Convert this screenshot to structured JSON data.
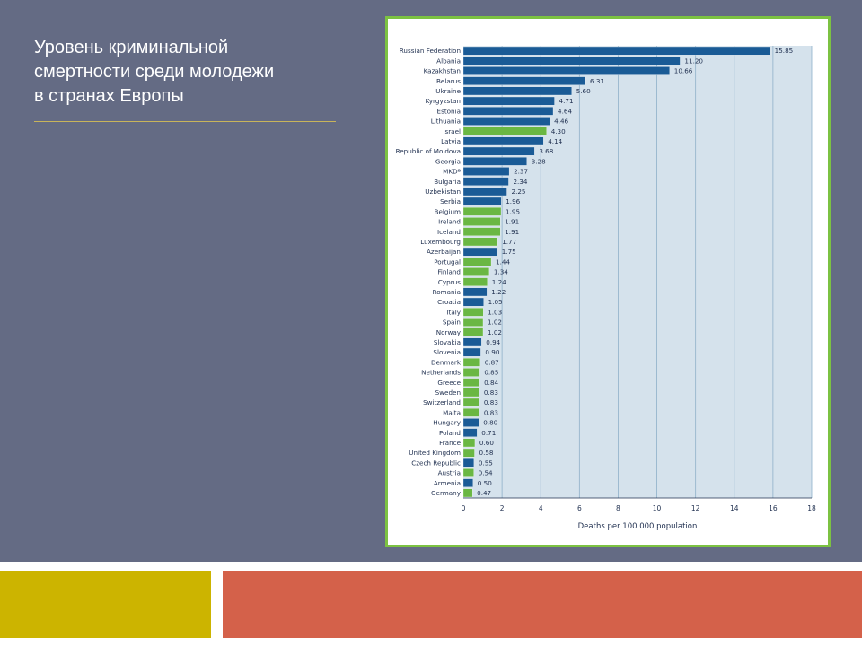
{
  "slide": {
    "title_lines": [
      "Уровень криминальной",
      "смертности среди молодежи",
      "в странах Европы"
    ]
  },
  "colors": {
    "background": "#646b84",
    "frame_border": "#7cc242",
    "plot_area": "#d5e2ec",
    "bar_blue": "#1a5b96",
    "bar_green": "#6ab743",
    "band_yellow": "#ccb400",
    "band_red": "#d4614a"
  },
  "chart_data": {
    "type": "bar",
    "orientation": "horizontal",
    "title": "",
    "xlabel": "Deaths per 100 000 population",
    "ylabel": "",
    "xlim": [
      0,
      18
    ],
    "xticks": [
      0,
      2,
      4,
      6,
      8,
      10,
      12,
      14,
      16,
      18
    ],
    "grid": true,
    "categories": [
      "Russian Federation",
      "Albania",
      "Kazakhstan",
      "Belarus",
      "Ukraine",
      "Kyrgyzstan",
      "Estonia",
      "Lithuania",
      "Israel",
      "Latvia",
      "Republic of Moldova",
      "Georgia",
      "MKDª",
      "Bulgaria",
      "Uzbekistan",
      "Serbia",
      "Belgium",
      "Ireland",
      "Iceland",
      "Luxembourg",
      "Azerbaijan",
      "Portugal",
      "Finland",
      "Cyprus",
      "Romania",
      "Croatia",
      "Italy",
      "Spain",
      "Norway",
      "Slovakia",
      "Slovenia",
      "Denmark",
      "Netherlands",
      "Greece",
      "Sweden",
      "Switzerland",
      "Malta",
      "Hungary",
      "Poland",
      "France",
      "United Kingdom",
      "Czech Republic",
      "Austria",
      "Armenia",
      "Germany"
    ],
    "values": [
      15.85,
      11.2,
      10.66,
      6.31,
      5.6,
      4.71,
      4.64,
      4.46,
      4.3,
      4.14,
      3.68,
      3.28,
      2.37,
      2.34,
      2.25,
      1.96,
      1.95,
      1.91,
      1.91,
      1.77,
      1.75,
      1.44,
      1.34,
      1.24,
      1.22,
      1.05,
      1.03,
      1.02,
      1.02,
      0.94,
      0.9,
      0.87,
      0.85,
      0.84,
      0.83,
      0.83,
      0.83,
      0.8,
      0.71,
      0.6,
      0.58,
      0.55,
      0.54,
      0.5,
      0.47
    ],
    "value_labels": [
      "15.85",
      "11.20",
      "10.66",
      "6.31",
      "5.60",
      "4.71",
      "4.64",
      "4.46",
      "4.30",
      "4.14",
      "3.68",
      "3.28",
      "2.37",
      "2.34",
      "2.25",
      "1.96",
      "1.95",
      "1.91",
      "1.91",
      "1.77",
      "1.75",
      "1.44",
      "1.34",
      "1.24",
      "1.22",
      "1.05",
      "1.03",
      "1.02",
      "1.02",
      "0.94",
      "0.90",
      "0.87",
      "0.85",
      "0.84",
      "0.83",
      "0.83",
      "0.83",
      "0.80",
      "0.71",
      "0.60",
      "0.58",
      "0.55",
      "0.54",
      "0.50",
      "0.47"
    ],
    "bar_colors": [
      "blue",
      "blue",
      "blue",
      "blue",
      "blue",
      "blue",
      "blue",
      "blue",
      "green",
      "blue",
      "blue",
      "blue",
      "blue",
      "blue",
      "blue",
      "blue",
      "green",
      "green",
      "green",
      "green",
      "blue",
      "green",
      "green",
      "green",
      "blue",
      "blue",
      "green",
      "green",
      "green",
      "blue",
      "blue",
      "green",
      "green",
      "green",
      "green",
      "green",
      "green",
      "blue",
      "blue",
      "green",
      "green",
      "blue",
      "green",
      "blue",
      "green"
    ]
  }
}
